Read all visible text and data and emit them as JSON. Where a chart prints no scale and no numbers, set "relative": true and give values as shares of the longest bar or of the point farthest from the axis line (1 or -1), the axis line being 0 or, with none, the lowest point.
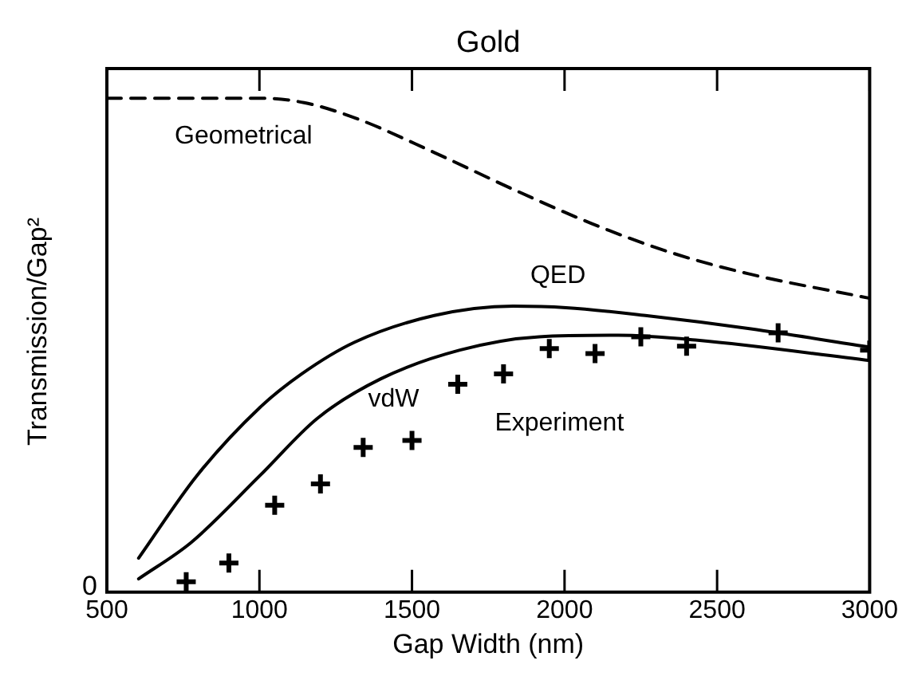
{
  "chart_data": {
    "type": "line",
    "title": "Gold",
    "xlabel": "Gap Width (nm)",
    "ylabel": "Transmission/Gap²",
    "relative": true,
    "xlim": [
      500,
      3000
    ],
    "xticks": [
      500,
      1000,
      1500,
      2000,
      2500,
      3000
    ],
    "grid": false,
    "legend": false,
    "marker": "none",
    "annotations": [
      "0"
    ],
    "series": [
      {
        "name": "Geometrical",
        "type": "line",
        "line_style": "dashed",
        "color": "#000000",
        "x": [
          500,
          1000,
          1146,
          1318,
          1573,
          1830,
          2090,
          2346,
          2600,
          3000
        ],
        "values": [
          1.0,
          1.0,
          0.991,
          0.959,
          0.89,
          0.816,
          0.746,
          0.688,
          0.645,
          0.595
        ]
      },
      {
        "name": "QED",
        "type": "line",
        "line_style": "solid",
        "color": "#000000",
        "x": [
          604,
          794,
          1000,
          1139,
          1312,
          1573,
          1832,
          2005,
          2265,
          2611,
          3000
        ],
        "values": [
          0.069,
          0.235,
          0.373,
          0.442,
          0.506,
          0.56,
          0.579,
          0.576,
          0.56,
          0.533,
          0.496
        ]
      },
      {
        "name": "vdW",
        "type": "line",
        "line_style": "solid",
        "color": "#000000",
        "x": [
          604,
          777,
          1000,
          1190,
          1398,
          1657,
          1917,
          2176,
          2436,
          3000
        ],
        "values": [
          0.027,
          0.101,
          0.235,
          0.352,
          0.432,
          0.49,
          0.517,
          0.52,
          0.51,
          0.469
        ]
      },
      {
        "name": "Experiment",
        "type": "scatter",
        "marker": "cross",
        "color": "#000000",
        "x": [
          760,
          900,
          1050,
          1200,
          1340,
          1500,
          1650,
          1800,
          1950,
          2100,
          2250,
          2400,
          2700,
          3000
        ],
        "values": [
          0.021,
          0.059,
          0.176,
          0.219,
          0.293,
          0.307,
          0.421,
          0.442,
          0.493,
          0.483,
          0.517,
          0.498,
          0.525,
          0.49
        ]
      }
    ]
  }
}
